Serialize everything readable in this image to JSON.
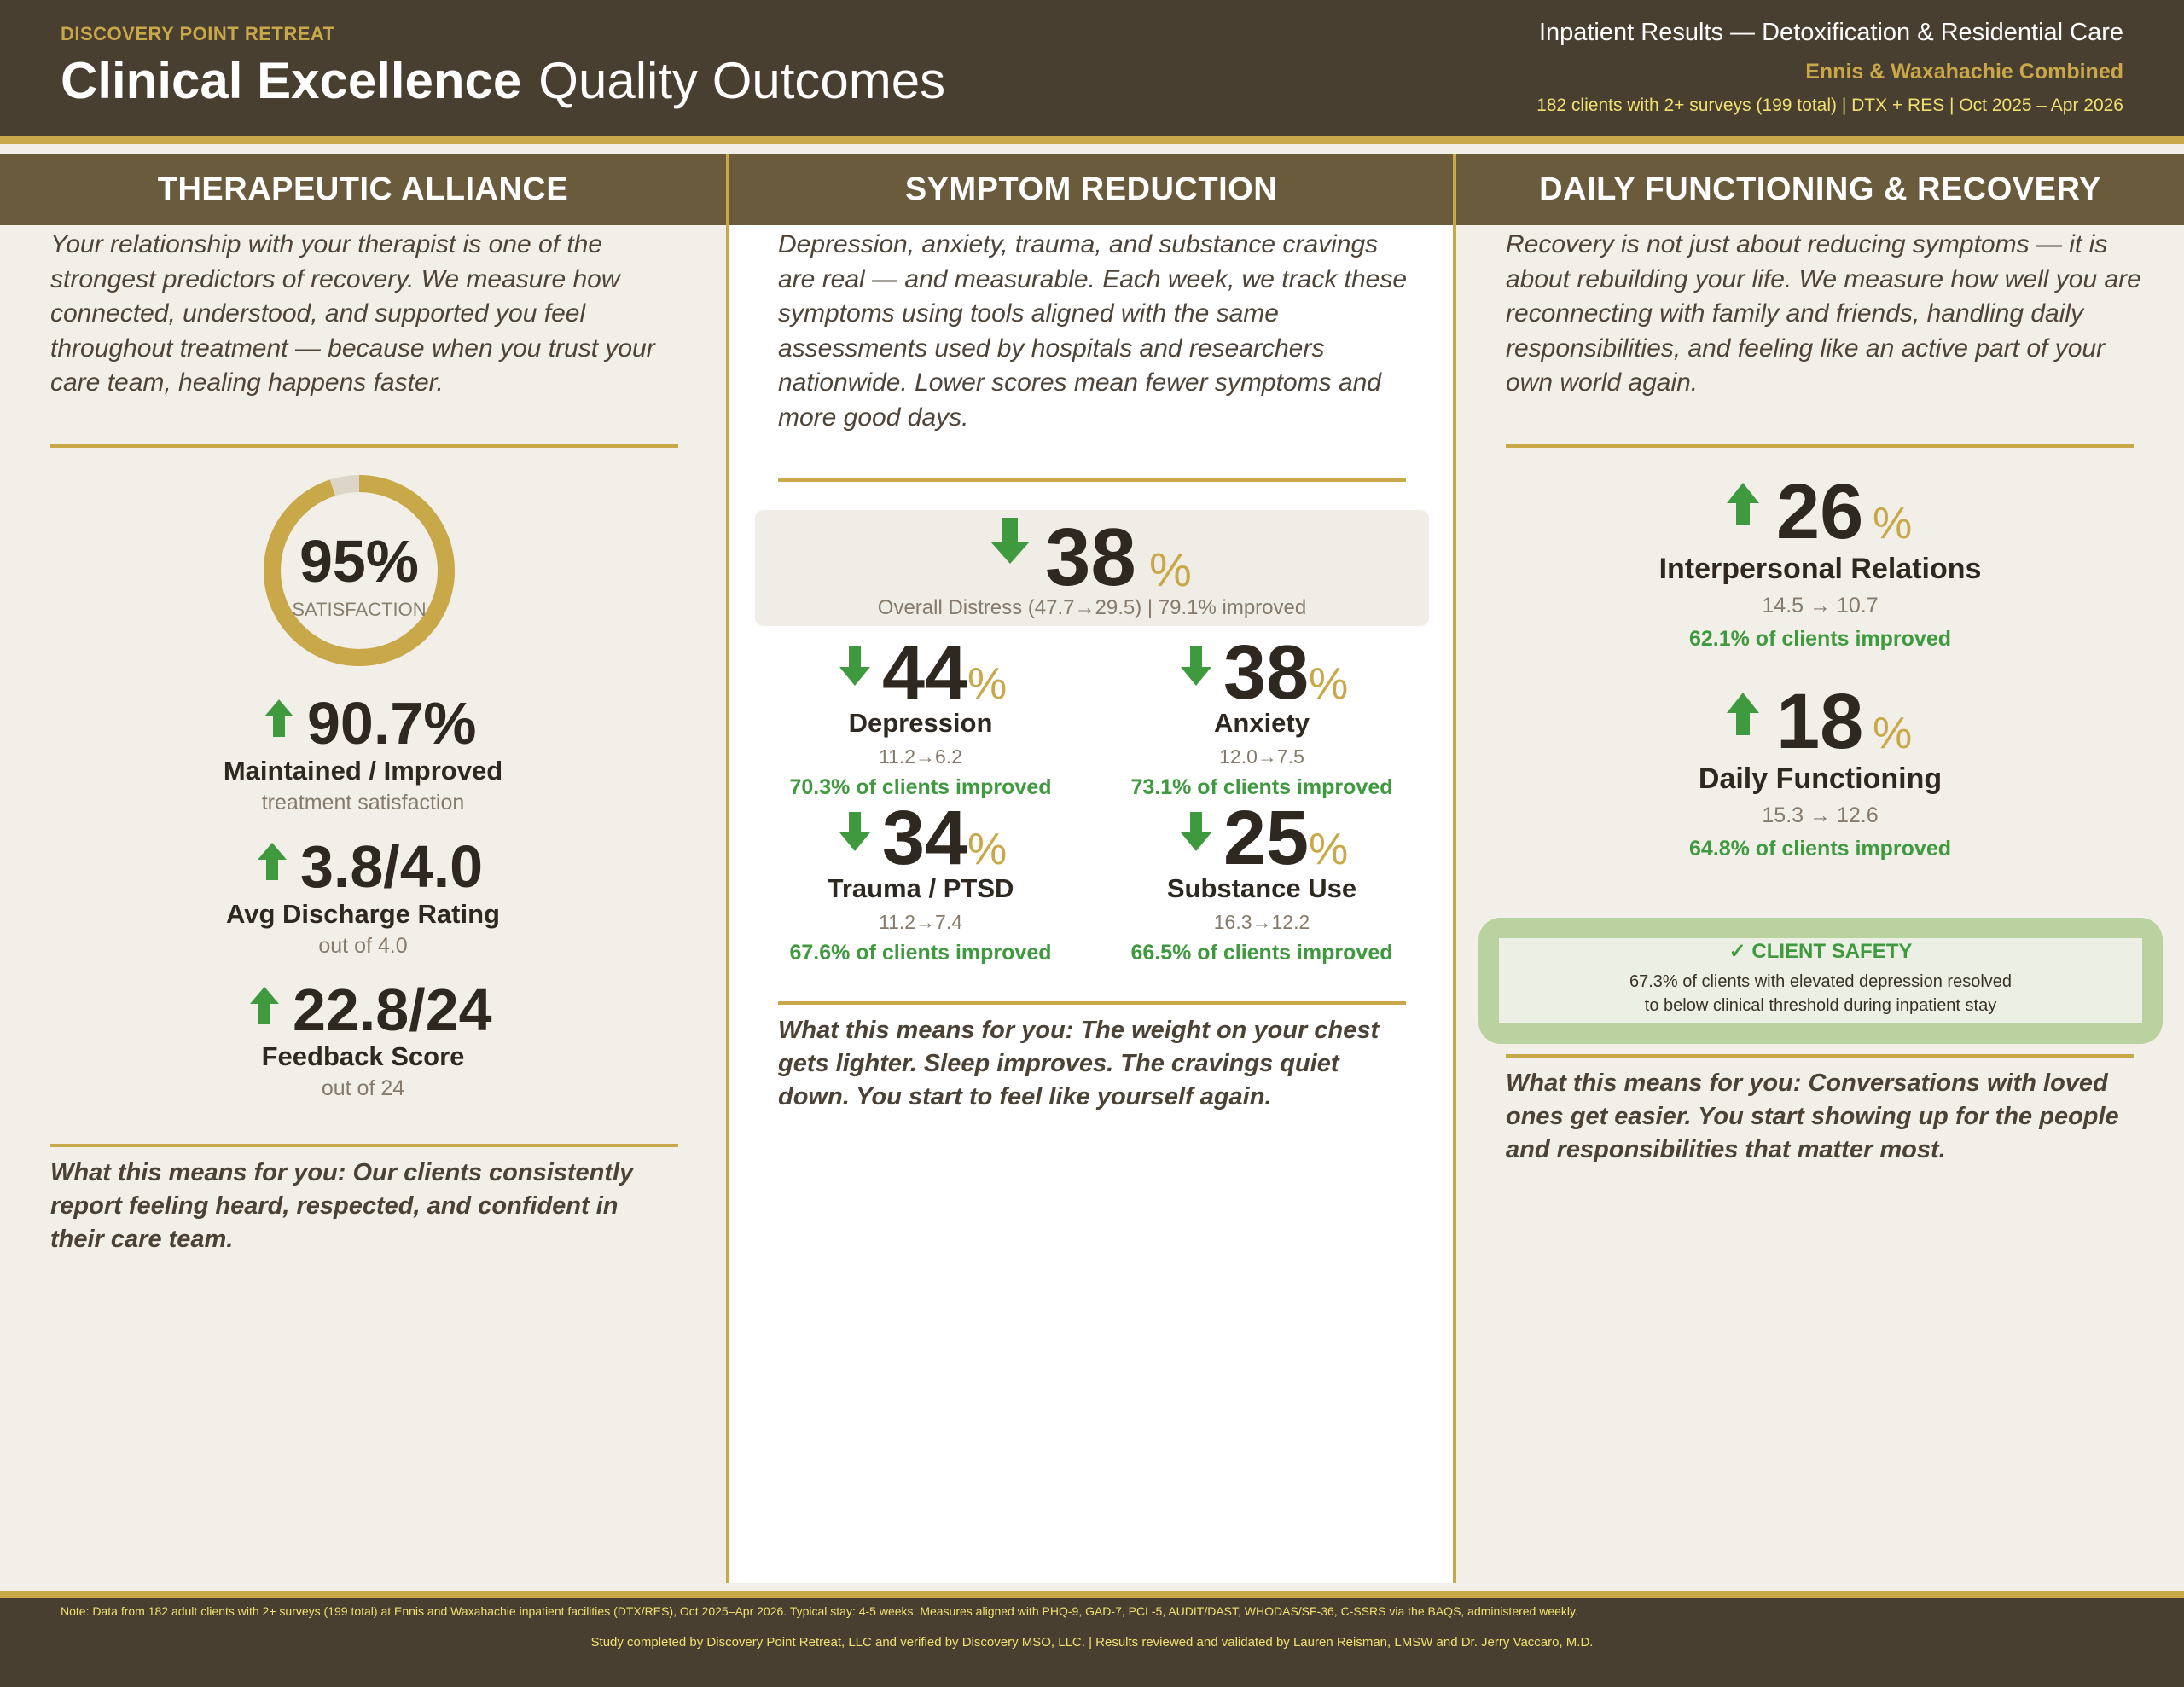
{
  "header": {
    "brand": "DISCOVERY POINT RETREAT",
    "title_bold": "Clinical Excellence",
    "title_light": "Quality Outcomes",
    "right_line1": "Inpatient Results — Detoxification & Residential Care",
    "right_line2": "Ennis & Waxahachie Combined",
    "right_line3": "182 clients with 2+ surveys (199 total)  |  DTX + RES  |  Oct 2025 – Apr 2026"
  },
  "alliance": {
    "heading": "THERAPEUTIC ALLIANCE",
    "intro": "Your relationship with your therapist is one of the strongest predictors of recovery. We measure how connected, understood, and supported you feel throughout treatment — because when you trust your care team, healing happens faster.",
    "donut_value": "95%",
    "donut_label": "SATISFACTION",
    "donut_fraction": 0.95,
    "stat1_value": "90.7%",
    "stat1_label": "Maintained / Improved",
    "stat1_sub": "treatment satisfaction",
    "stat2_value": "3.8/4.0",
    "stat2_label": "Avg Discharge Rating",
    "stat2_sub": "out of 4.0",
    "stat3_value": "22.8/24",
    "stat3_label": "Feedback Score",
    "stat3_sub": "out of 24",
    "meaning": "What this means for you: Our clients consistently report feeling heard, respected, and confident in their care team."
  },
  "symptom": {
    "heading": "SYMPTOM REDUCTION",
    "intro": "Depression, anxiety, trauma, and substance cravings are real — and measurable. Each week, we track these symptoms using tools aligned with the same assessments used by hospitals and researchers nationwide. Lower scores mean fewer symptoms and more good days.",
    "overall_value": "38",
    "overall_pct": "%",
    "overall_sub": "Overall Distress (47.7→29.5) | 79.1% improved",
    "items": [
      {
        "value": "44",
        "pct": "%",
        "label": "Depression",
        "range": "11.2→6.2",
        "improved": "70.3% of clients improved"
      },
      {
        "value": "38",
        "pct": "%",
        "label": "Anxiety",
        "range": "12.0→7.5",
        "improved": "73.1% of clients improved"
      },
      {
        "value": "34",
        "pct": "%",
        "label": "Trauma / PTSD",
        "range": "11.2→7.4",
        "improved": "67.6% of clients improved"
      },
      {
        "value": "25",
        "pct": "%",
        "label": "Substance Use",
        "range": "16.3→12.2",
        "improved": "66.5% of clients improved"
      }
    ],
    "meaning": "What this means for you: The weight on your chest gets lighter. Sleep improves. The cravings quiet down. You start to feel like yourself again."
  },
  "functioning": {
    "heading": "DAILY FUNCTIONING & RECOVERY",
    "intro": "Recovery is not just about reducing symptoms — it is about rebuilding your life. We measure how well you are reconnecting with family and friends, handling daily responsibilities, and feeling like an active part of your own world again.",
    "stat1_value": "26",
    "stat1_pct": "%",
    "stat1_label": "Interpersonal Relations",
    "stat1_range": "14.5 → 10.7",
    "stat1_improved": "62.1% of clients improved",
    "stat2_value": "18",
    "stat2_pct": "%",
    "stat2_label": "Daily Functioning",
    "stat2_range": "15.3 → 12.6",
    "stat2_improved": "64.8% of clients improved",
    "safety_title": "✓  CLIENT SAFETY",
    "safety_line1": "67.3% of clients with elevated depression resolved",
    "safety_line2": "to below clinical threshold during inpatient stay",
    "meaning": "What this means for you: Conversations with loved ones get easier. You start showing up for the people and responsibilities that matter most."
  },
  "footer": {
    "note": "Note: Data from 182 adult clients with 2+ surveys (199 total) at Ennis and Waxahachie inpatient facilities (DTX/RES), Oct 2025–Apr 2026. Typical stay: 4-5 weeks. Measures aligned with PHQ-9, GAD-7, PCL-5, AUDIT/DAST, WHODAS/SF-36, C-SSRS via the BAQS, administered weekly.",
    "credit": "Study completed by Discovery Point Retreat, LLC and verified by Discovery MSO, LLC.  |  Results reviewed and validated by Lauren Reisman, LMSW and Dr. Jerry Vaccaro, M.D."
  },
  "colors": {
    "header_bg": "#483f30",
    "column_bar": "#6a5b3d",
    "gold": "#c9a84a",
    "green": "#3f9a3f",
    "safety_bg": "#b9d29f"
  }
}
